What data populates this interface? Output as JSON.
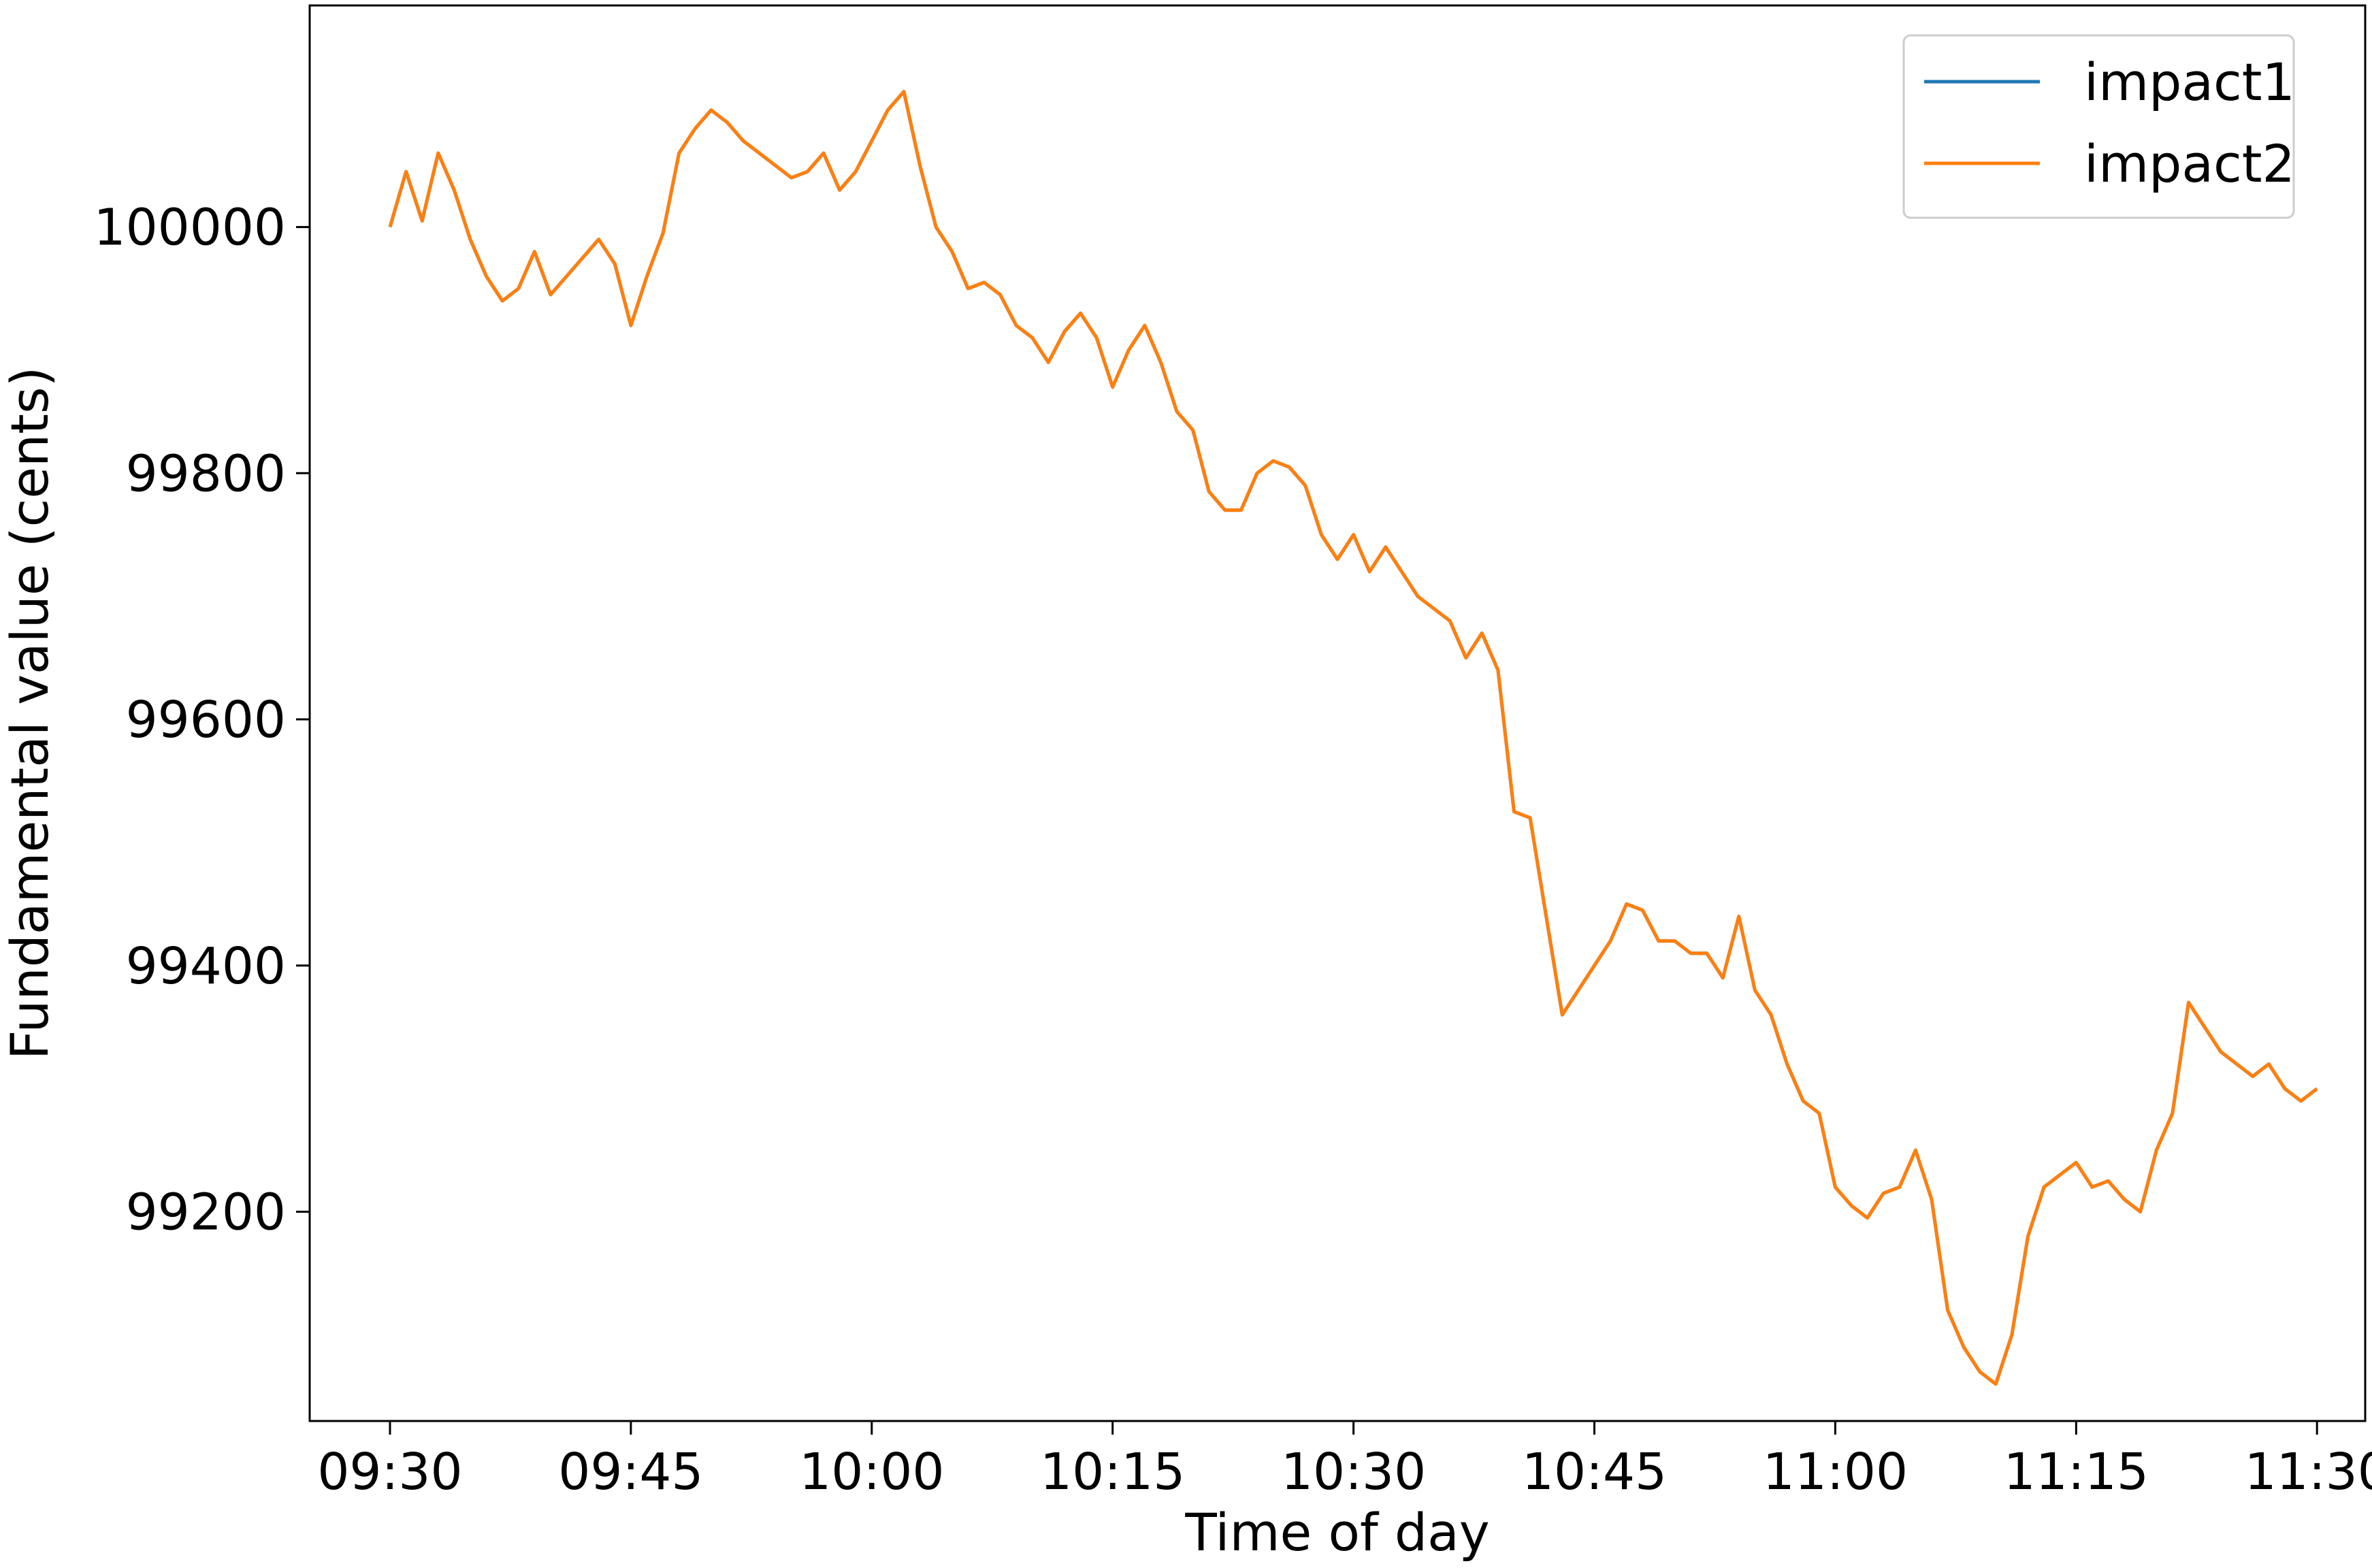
{
  "chart_data": {
    "type": "line",
    "title": "",
    "xlabel": "Time of day",
    "ylabel": "Fundamental value (cents)",
    "x_unit": "clock time",
    "xlim": [
      "09:25",
      "11:33"
    ],
    "ylim": [
      99030,
      100180
    ],
    "x_ticks": [
      "09:30",
      "09:45",
      "10:00",
      "10:15",
      "10:30",
      "10:45",
      "11:00",
      "11:15",
      "11:30"
    ],
    "y_ticks": [
      99200,
      99400,
      99600,
      99800,
      100000
    ],
    "grid": false,
    "legend_position": "top-right",
    "x": [
      "09:30",
      "09:31",
      "09:32",
      "09:33",
      "09:34",
      "09:35",
      "09:36",
      "09:37",
      "09:38",
      "09:39",
      "09:40",
      "09:41",
      "09:42",
      "09:43",
      "09:44",
      "09:45",
      "09:46",
      "09:47",
      "09:48",
      "09:49",
      "09:50",
      "09:51",
      "09:52",
      "09:53",
      "09:54",
      "09:55",
      "09:56",
      "09:57",
      "09:58",
      "09:59",
      "10:00",
      "10:01",
      "10:02",
      "10:03",
      "10:04",
      "10:05",
      "10:06",
      "10:07",
      "10:08",
      "10:09",
      "10:10",
      "10:11",
      "10:12",
      "10:13",
      "10:14",
      "10:15",
      "10:16",
      "10:17",
      "10:18",
      "10:19",
      "10:20",
      "10:21",
      "10:22",
      "10:23",
      "10:24",
      "10:25",
      "10:26",
      "10:27",
      "10:28",
      "10:29",
      "10:30",
      "10:31",
      "10:32",
      "10:33",
      "10:34",
      "10:35",
      "10:36",
      "10:37",
      "10:38",
      "10:39",
      "10:40",
      "10:41",
      "10:42",
      "10:43",
      "10:44",
      "10:45",
      "10:46",
      "10:47",
      "10:48",
      "10:49",
      "10:50",
      "10:51",
      "10:52",
      "10:53",
      "10:54",
      "10:55",
      "10:56",
      "10:57",
      "10:58",
      "10:59",
      "11:00",
      "11:01",
      "11:02",
      "11:03",
      "11:04",
      "11:05",
      "11:06",
      "11:07",
      "11:08",
      "11:09",
      "11:10",
      "11:11",
      "11:12",
      "11:13",
      "11:14",
      "11:15",
      "11:16",
      "11:17",
      "11:18",
      "11:19",
      "11:20",
      "11:21",
      "11:22",
      "11:23",
      "11:24",
      "11:25",
      "11:26",
      "11:27",
      "11:28",
      "11:29",
      "11:30"
    ],
    "series": [
      {
        "name": "impact1",
        "color": "#1f77b4",
        "values": [
          100000,
          100045,
          100005,
          100060,
          100030,
          99990,
          99960,
          99940,
          99950,
          99980,
          99945,
          99960,
          99975,
          99990,
          99970,
          99920,
          99960,
          99995,
          100060,
          100080,
          100095,
          100085,
          100070,
          100060,
          100050,
          100040,
          100045,
          100060,
          100030,
          100045,
          100070,
          100095,
          100110,
          100050,
          100000,
          99980,
          99950,
          99955,
          99945,
          99920,
          99910,
          99890,
          99915,
          99930,
          99910,
          99870,
          99900,
          99920,
          99890,
          99850,
          99835,
          99785,
          99770,
          99770,
          99800,
          99810,
          99805,
          99790,
          99750,
          99730,
          99750,
          99720,
          99740,
          99720,
          99700,
          99690,
          99680,
          99650,
          99670,
          99640,
          99525,
          99520,
          99440,
          99360,
          99380,
          99400,
          99420,
          99450,
          99445,
          99420,
          99420,
          99410,
          99410,
          99390,
          99440,
          99380,
          99360,
          99320,
          99290,
          99280,
          99220,
          99205,
          99195,
          99215,
          99220,
          99250,
          99210,
          99120,
          99090,
          99070,
          99060,
          99100,
          99180,
          99220,
          99230,
          99240,
          99220,
          99225,
          99210,
          99200,
          99250,
          99280,
          99370,
          99350,
          99330,
          99320,
          99310,
          99320,
          99300,
          99290,
          99300
        ]
      },
      {
        "name": "impact2",
        "color": "#ff7f0e",
        "values": [
          100000,
          100045,
          100005,
          100060,
          100030,
          99990,
          99960,
          99940,
          99950,
          99980,
          99945,
          99960,
          99975,
          99990,
          99970,
          99920,
          99960,
          99995,
          100060,
          100080,
          100095,
          100085,
          100070,
          100060,
          100050,
          100040,
          100045,
          100060,
          100030,
          100045,
          100070,
          100095,
          100110,
          100050,
          100000,
          99980,
          99950,
          99955,
          99945,
          99920,
          99910,
          99890,
          99915,
          99930,
          99910,
          99870,
          99900,
          99920,
          99890,
          99850,
          99835,
          99785,
          99770,
          99770,
          99800,
          99810,
          99805,
          99790,
          99750,
          99730,
          99750,
          99720,
          99740,
          99720,
          99700,
          99690,
          99680,
          99650,
          99670,
          99640,
          99525,
          99520,
          99440,
          99360,
          99380,
          99400,
          99420,
          99450,
          99445,
          99420,
          99420,
          99410,
          99410,
          99390,
          99440,
          99380,
          99360,
          99320,
          99290,
          99280,
          99220,
          99205,
          99195,
          99215,
          99220,
          99250,
          99210,
          99120,
          99090,
          99070,
          99060,
          99100,
          99180,
          99220,
          99230,
          99240,
          99220,
          99225,
          99210,
          99200,
          99250,
          99280,
          99370,
          99350,
          99330,
          99320,
          99310,
          99320,
          99300,
          99290,
          99300
        ]
      }
    ]
  }
}
